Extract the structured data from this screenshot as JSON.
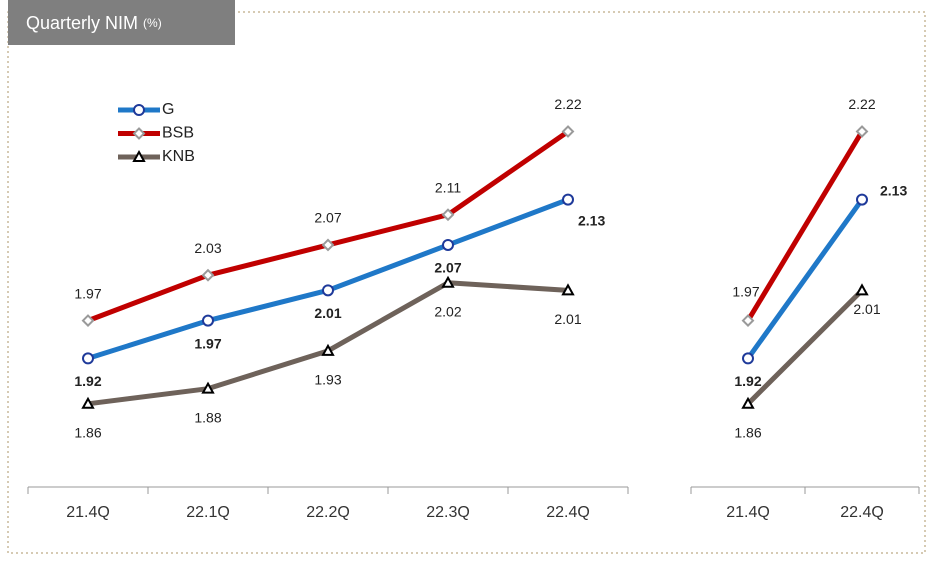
{
  "chart_data": [
    {
      "type": "line",
      "title": "Quarterly NIM",
      "unit": "(%)",
      "categories": [
        "21.4Q",
        "22.1Q",
        "22.2Q",
        "22.3Q",
        "22.4Q"
      ],
      "ylim": [
        1.75,
        2.3
      ],
      "series": [
        {
          "name": "G",
          "color": "#1f78c8",
          "values": [
            1.92,
            1.97,
            2.01,
            2.07,
            2.13
          ]
        },
        {
          "name": "BSB",
          "color": "#c00000",
          "values": [
            1.97,
            2.03,
            2.07,
            2.11,
            2.22
          ]
        },
        {
          "name": "KNB",
          "color": "#6e625a",
          "values": [
            1.86,
            1.88,
            1.93,
            2.02,
            2.01
          ]
        }
      ]
    },
    {
      "type": "line",
      "categories": [
        "21.4Q",
        "22.4Q"
      ],
      "ylim": [
        1.75,
        2.3
      ],
      "series": [
        {
          "values": [
            1.92,
            2.13
          ]
        },
        {
          "values": [
            1.97,
            2.22
          ]
        },
        {
          "values": [
            1.86,
            2.01
          ]
        }
      ]
    }
  ]
}
